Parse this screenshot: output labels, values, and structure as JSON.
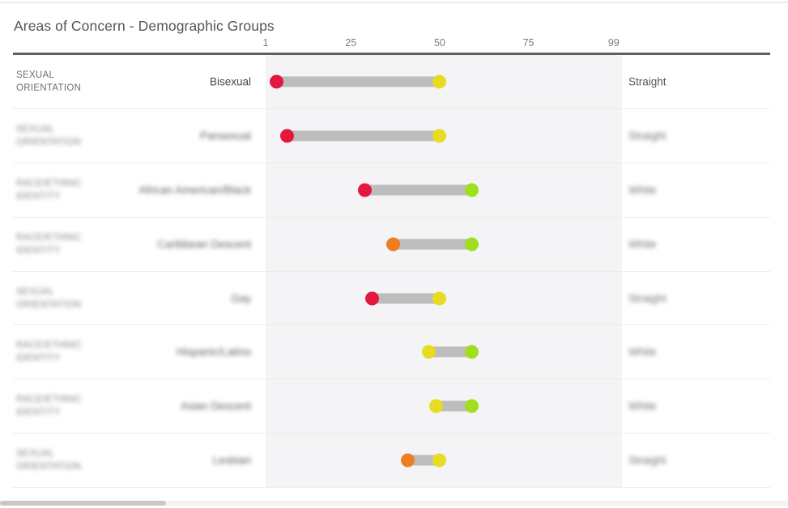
{
  "header": {
    "title": "Areas of Concern - Demographic Groups"
  },
  "chart_data": {
    "type": "dumbbell",
    "title": "Areas of Concern - Demographic Groups",
    "xlabel": "",
    "ylabel": "",
    "axis": {
      "min": 1,
      "max": 99,
      "ticks": [
        "1",
        "25",
        "50",
        "75",
        "99"
      ]
    },
    "grid": false,
    "legend_position": "none",
    "colors": {
      "red": "#e4173e",
      "orange": "#ee7e23",
      "yellow": "#e8dc22",
      "green": "#a0df1e",
      "bar": "#bdbdbd",
      "band": "#f4f4f6"
    },
    "rows": [
      {
        "category": "SEXUAL ORIENTATION",
        "group": "Bisexual",
        "comparison": "Straight",
        "start": 4,
        "end": 50,
        "start_color": "red",
        "end_color": "yellow",
        "blurred": false
      },
      {
        "category": "SEXUAL ORIENTATION",
        "group": "Pansexual",
        "comparison": "Straight",
        "start": 7,
        "end": 50,
        "start_color": "red",
        "end_color": "yellow",
        "blurred": true
      },
      {
        "category": "RACE/ETHNIC IDENTITY",
        "group": "African American/Black",
        "comparison": "White",
        "start": 29,
        "end": 59,
        "start_color": "red",
        "end_color": "green",
        "blurred": true
      },
      {
        "category": "RACE/ETHNIC IDENTITY",
        "group": "Caribbean Descent",
        "comparison": "White",
        "start": 37,
        "end": 59,
        "start_color": "orange",
        "end_color": "green",
        "blurred": true
      },
      {
        "category": "SEXUAL ORIENTATION",
        "group": "Gay",
        "comparison": "Straight",
        "start": 31,
        "end": 50,
        "start_color": "red",
        "end_color": "yellow",
        "blurred": true
      },
      {
        "category": "RACE/ETHNIC IDENTITY",
        "group": "Hispanic/Latino",
        "comparison": "White",
        "start": 47,
        "end": 59,
        "start_color": "yellow",
        "end_color": "green",
        "blurred": true
      },
      {
        "category": "RACE/ETHNIC IDENTITY",
        "group": "Asian Descent",
        "comparison": "White",
        "start": 49,
        "end": 59,
        "start_color": "yellow",
        "end_color": "green",
        "blurred": true
      },
      {
        "category": "SEXUAL ORIENTATION",
        "group": "Lesbian",
        "comparison": "Straight",
        "start": 41,
        "end": 50,
        "start_color": "orange",
        "end_color": "yellow",
        "blurred": true
      }
    ]
  }
}
